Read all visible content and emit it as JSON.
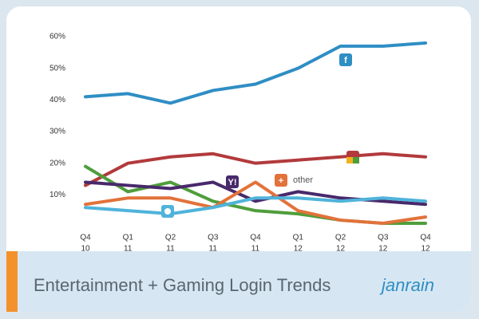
{
  "chart_data": {
    "type": "line",
    "title": "Entertainment + Gaming Login Trends",
    "brand": "janrain",
    "categories": [
      {
        "quarter": "Q4",
        "year": "10"
      },
      {
        "quarter": "Q1",
        "year": "11"
      },
      {
        "quarter": "Q2",
        "year": "11"
      },
      {
        "quarter": "Q3",
        "year": "11"
      },
      {
        "quarter": "Q4",
        "year": "11"
      },
      {
        "quarter": "Q1",
        "year": "12"
      },
      {
        "quarter": "Q2",
        "year": "12"
      },
      {
        "quarter": "Q3",
        "year": "12"
      },
      {
        "quarter": "Q4",
        "year": "12"
      }
    ],
    "ylim": [
      0,
      60
    ],
    "yticks": [
      {
        "value": 10,
        "label": "10%"
      },
      {
        "value": 20,
        "label": "20%"
      },
      {
        "value": 30,
        "label": "30%"
      },
      {
        "value": 40,
        "label": "40%"
      },
      {
        "value": 50,
        "label": "50%"
      },
      {
        "value": 60,
        "label": "60%"
      }
    ],
    "series": [
      {
        "color": "#2f8ec4",
        "icon": "f",
        "values": [
          41,
          42,
          39,
          43,
          45,
          50,
          57,
          57,
          58
        ]
      },
      {
        "color": "#b23a3c",
        "values": [
          13,
          20,
          22,
          23,
          20,
          21,
          22,
          23,
          22
        ]
      },
      {
        "color": "#4f9e3c",
        "values": [
          19,
          11,
          14,
          8,
          5,
          4,
          2,
          1,
          1
        ]
      },
      {
        "color": "#48296b",
        "icon": "Y!",
        "values": [
          14,
          13,
          12,
          14,
          8,
          11,
          9,
          8,
          7
        ]
      },
      {
        "color": "#e2723a",
        "icon": "+",
        "name": "other",
        "values": [
          7,
          9,
          9,
          6,
          14,
          5,
          2,
          1,
          3
        ]
      },
      {
        "color": "#4fb3da",
        "values": [
          6,
          5,
          4,
          6,
          9,
          9,
          8,
          9,
          8
        ]
      }
    ]
  }
}
